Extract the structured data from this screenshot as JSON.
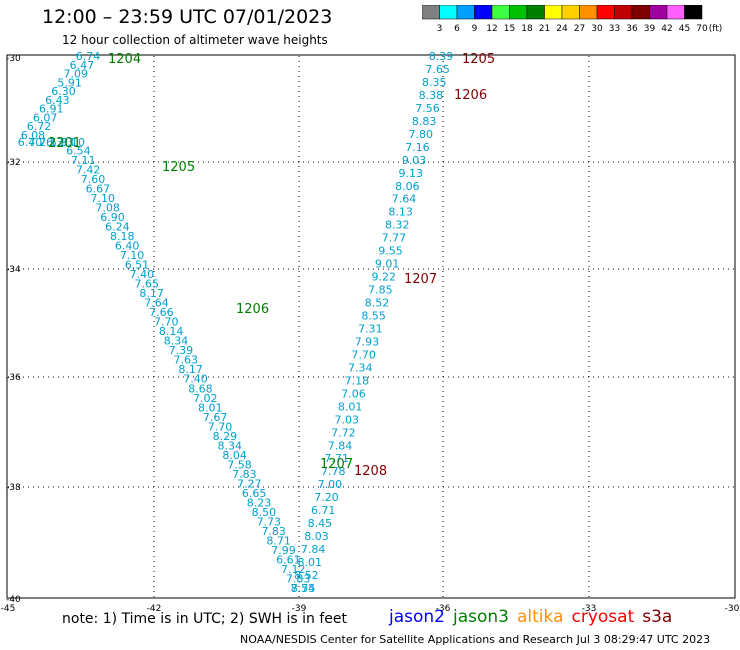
{
  "title": "12:00 – 23:59 UTC 07/01/2023",
  "subtitle": "12 hour collection of altimeter wave heights",
  "legend": {
    "unit": "(ft)",
    "items": [
      {
        "label": "3",
        "color": "#808080"
      },
      {
        "label": "6",
        "color": "#00ffff"
      },
      {
        "label": "9",
        "color": "#00a0ff"
      },
      {
        "label": "12",
        "color": "#0000ff"
      },
      {
        "label": "15",
        "color": "#40ff40"
      },
      {
        "label": "18",
        "color": "#00c000"
      },
      {
        "label": "21",
        "color": "#008000"
      },
      {
        "label": "24",
        "color": "#ffff00"
      },
      {
        "label": "27",
        "color": "#ffd000"
      },
      {
        "label": "30",
        "color": "#ff9000"
      },
      {
        "label": "33",
        "color": "#ff0000"
      },
      {
        "label": "36",
        "color": "#c00000"
      },
      {
        "label": "39",
        "color": "#800000"
      },
      {
        "label": "42",
        "color": "#a000a0"
      },
      {
        "label": "45",
        "color": "#ff60ff"
      },
      {
        "label": "70",
        "color": "#000000"
      }
    ]
  },
  "axes": {
    "lat_labels": [
      "-30",
      "-32",
      "-34",
      "-36",
      "-38",
      "-40"
    ],
    "lon_labels": [
      "-45",
      "-42",
      "-39",
      "-36",
      "-33",
      "-30"
    ]
  },
  "tracks": [
    {
      "color": "#00a0d0",
      "values": [
        "6.74",
        "6.47",
        "7.09",
        "5.91",
        "6.30",
        "6.43",
        "6.91",
        "6.07",
        "6.72",
        "6.08",
        "6.40",
        "7.26",
        "7.13",
        "5.93",
        "6.10",
        "6.54",
        "7.11",
        "7.42",
        "7.60",
        "6.67",
        "7.10",
        "7.08",
        "6.90",
        "6.24",
        "8.18",
        "6.40",
        "7.10",
        "6.51",
        "7.40",
        "7.65",
        "8.17",
        "7.64",
        "7.66",
        "7.70",
        "8.14",
        "8.34",
        "7.39",
        "7.63",
        "8.17",
        "7.40",
        "8.68",
        "7.02",
        "8.01",
        "7.67",
        "7.70",
        "8.29",
        "8.34",
        "8.04",
        "7.58",
        "7.83",
        "7.27",
        "6.65",
        "8.23",
        "8.50",
        "7.73",
        "7.83",
        "8.71",
        "7.99",
        "6.61",
        "7.12",
        "7.83",
        "7.55"
      ]
    },
    {
      "color": "#00a0d0",
      "values": [
        "8.39",
        "7.65",
        "8.35",
        "8.38",
        "7.56",
        "8.83",
        "7.80",
        "7.16",
        "9.03",
        "9.13",
        "8.06",
        "7.64",
        "8.13",
        "8.32",
        "7.77",
        "9.55",
        "9.01",
        "9.22",
        "7.85",
        "8.52",
        "8.55",
        "7.31",
        "7.93",
        "7.70",
        "7.34",
        "7.18",
        "7.06",
        "8.01",
        "7.03",
        "7.72",
        "7.84",
        "7.71",
        "7.78",
        "7.00",
        "7.20",
        "6.71",
        "8.45",
        "8.03",
        "7.84",
        "8.01",
        "8.52",
        "8.74"
      ]
    }
  ],
  "time_labels": [
    {
      "text": "1204",
      "color": "#008000"
    },
    {
      "text": "2201",
      "color": "#008000"
    },
    {
      "text": "1205",
      "color": "#008000"
    },
    {
      "text": "1206",
      "color": "#008000"
    },
    {
      "text": "1207",
      "color": "#008000"
    },
    {
      "text": "1205",
      "color": "#800000"
    },
    {
      "text": "1206",
      "color": "#800000"
    },
    {
      "text": "1207",
      "color": "#800000"
    },
    {
      "text": "1208",
      "color": "#800000"
    }
  ],
  "note": "note: 1) Time is in UTC; 2) SWH is in feet",
  "satellites": [
    {
      "name": "jason2",
      "color": "#0000ff"
    },
    {
      "name": "jason3",
      "color": "#008000"
    },
    {
      "name": "altika",
      "color": "#ff9000"
    },
    {
      "name": "cryosat",
      "color": "#ff0000"
    },
    {
      "name": "s3a",
      "color": "#800000"
    }
  ],
  "credit": "NOAA/NESDIS Center for Satellite Applications and Research   Jul  3 08:29:47 UTC 2023"
}
